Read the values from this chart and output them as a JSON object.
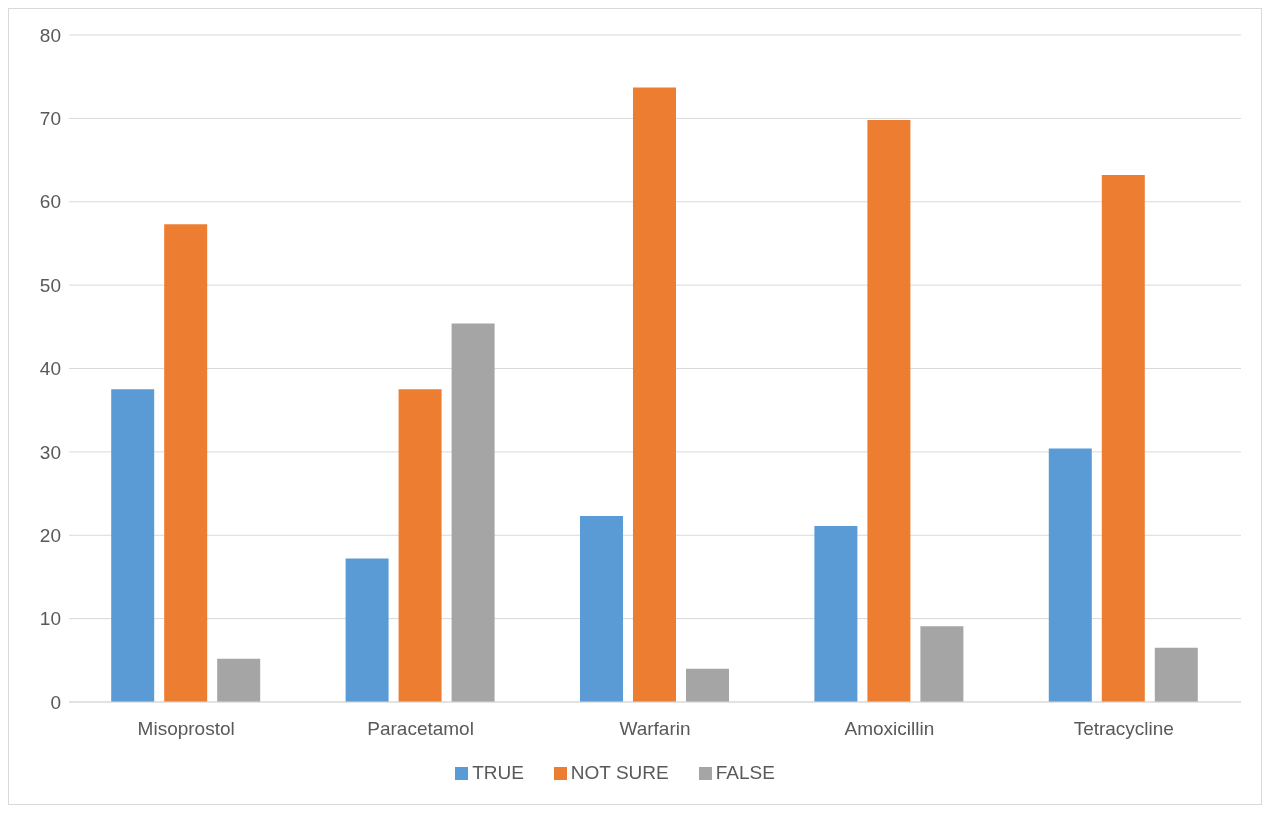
{
  "chart_data": {
    "type": "bar",
    "categories": [
      "Misoprostol",
      "Paracetamol",
      "Warfarin",
      "Amoxicillin",
      "Tetracycline"
    ],
    "series": [
      {
        "name": "TRUE",
        "color": "#5b9bd5",
        "values": [
          37.5,
          17.2,
          22.3,
          21.1,
          30.4
        ]
      },
      {
        "name": "NOT SURE",
        "color": "#ed7d31",
        "values": [
          57.3,
          37.5,
          73.7,
          69.8,
          63.2
        ]
      },
      {
        "name": "FALSE",
        "color": "#a5a5a5",
        "values": [
          5.2,
          45.4,
          4.0,
          9.1,
          6.5
        ]
      }
    ],
    "ylim": [
      0,
      80
    ],
    "yticks": [
      0,
      10,
      20,
      30,
      40,
      50,
      60,
      70,
      80
    ],
    "grid": "y",
    "legend": "bottom"
  }
}
